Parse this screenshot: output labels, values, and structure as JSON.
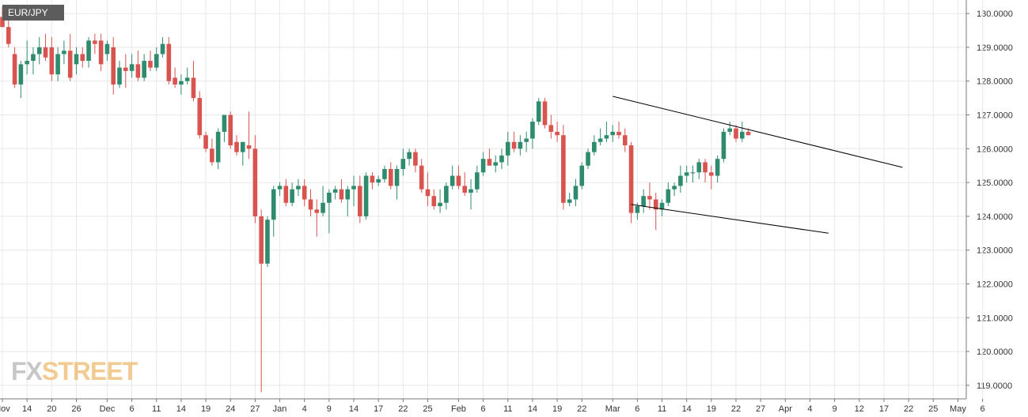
{
  "symbol_label": "EUR/JPY",
  "watermark": {
    "part1": "FX",
    "part2": "STREET"
  },
  "colors": {
    "up": "#2e8b6e",
    "down": "#d9534f",
    "grid": "#e8e8e8",
    "axis": "#777777",
    "trend": "#000000"
  },
  "chart_data": {
    "type": "candlestick",
    "y_axis": {
      "range": [
        118.6,
        130.4
      ],
      "ticks": [
        "119.0000",
        "120.0000",
        "121.0000",
        "122.0000",
        "123.0000",
        "124.0000",
        "125.0000",
        "126.0000",
        "127.0000",
        "128.0000",
        "129.0000",
        "130.0000"
      ]
    },
    "x_axis": {
      "ticks": [
        {
          "i": 0,
          "label": "Nov"
        },
        {
          "i": 4,
          "label": "14"
        },
        {
          "i": 8,
          "label": "20"
        },
        {
          "i": 12,
          "label": "26"
        },
        {
          "i": 17,
          "label": "Dec"
        },
        {
          "i": 21,
          "label": "6"
        },
        {
          "i": 25,
          "label": "11"
        },
        {
          "i": 29,
          "label": "14"
        },
        {
          "i": 33,
          "label": "19"
        },
        {
          "i": 37,
          "label": "24"
        },
        {
          "i": 41,
          "label": "27"
        },
        {
          "i": 45,
          "label": "Jan"
        },
        {
          "i": 49,
          "label": "4"
        },
        {
          "i": 53,
          "label": "9"
        },
        {
          "i": 57,
          "label": "14"
        },
        {
          "i": 61,
          "label": "17"
        },
        {
          "i": 65,
          "label": "22"
        },
        {
          "i": 69,
          "label": "25"
        },
        {
          "i": 74,
          "label": "Feb"
        },
        {
          "i": 78,
          "label": "6"
        },
        {
          "i": 82,
          "label": "11"
        },
        {
          "i": 86,
          "label": "14"
        },
        {
          "i": 90,
          "label": "19"
        },
        {
          "i": 94,
          "label": "22"
        },
        {
          "i": 99,
          "label": "Mar"
        },
        {
          "i": 103,
          "label": "6"
        },
        {
          "i": 107,
          "label": "11"
        },
        {
          "i": 111,
          "label": "14"
        },
        {
          "i": 115,
          "label": "19"
        },
        {
          "i": 119,
          "label": "22"
        },
        {
          "i": 123,
          "label": "27"
        },
        {
          "i": 127,
          "label": "Apr"
        },
        {
          "i": 131,
          "label": "4"
        },
        {
          "i": 135,
          "label": "9"
        },
        {
          "i": 139,
          "label": "12"
        },
        {
          "i": 143,
          "label": "17"
        },
        {
          "i": 147,
          "label": "22"
        },
        {
          "i": 151,
          "label": "25"
        },
        {
          "i": 155,
          "label": "May"
        },
        {
          "i": 159,
          "label": "6"
        }
      ]
    },
    "candles": [
      {
        "o": 129.9,
        "h": 130.2,
        "l": 129.6,
        "c": 129.6
      },
      {
        "o": 129.6,
        "h": 129.8,
        "l": 129.0,
        "c": 129.1
      },
      {
        "o": 128.8,
        "h": 129.0,
        "l": 127.8,
        "c": 127.9
      },
      {
        "o": 127.9,
        "h": 128.6,
        "l": 127.5,
        "c": 128.5
      },
      {
        "o": 128.5,
        "h": 129.2,
        "l": 128.2,
        "c": 128.6
      },
      {
        "o": 128.6,
        "h": 129.0,
        "l": 128.2,
        "c": 128.8
      },
      {
        "o": 128.8,
        "h": 129.3,
        "l": 128.5,
        "c": 129.0
      },
      {
        "o": 129.0,
        "h": 129.4,
        "l": 128.6,
        "c": 128.7
      },
      {
        "o": 129.0,
        "h": 129.3,
        "l": 128.0,
        "c": 128.2
      },
      {
        "o": 128.2,
        "h": 129.0,
        "l": 128.0,
        "c": 128.8
      },
      {
        "o": 128.8,
        "h": 129.2,
        "l": 128.5,
        "c": 128.9
      },
      {
        "o": 128.9,
        "h": 129.4,
        "l": 128.0,
        "c": 128.1
      },
      {
        "o": 128.5,
        "h": 129.0,
        "l": 128.2,
        "c": 128.8
      },
      {
        "o": 128.8,
        "h": 129.0,
        "l": 128.4,
        "c": 128.6
      },
      {
        "o": 128.6,
        "h": 129.3,
        "l": 128.4,
        "c": 129.2
      },
      {
        "o": 129.2,
        "h": 129.4,
        "l": 128.8,
        "c": 129.1
      },
      {
        "o": 129.2,
        "h": 129.4,
        "l": 128.3,
        "c": 128.5
      },
      {
        "o": 128.8,
        "h": 129.2,
        "l": 128.6,
        "c": 129.1
      },
      {
        "o": 129.0,
        "h": 129.3,
        "l": 127.6,
        "c": 127.9
      },
      {
        "o": 127.9,
        "h": 128.6,
        "l": 127.8,
        "c": 128.4
      },
      {
        "o": 128.4,
        "h": 128.8,
        "l": 127.8,
        "c": 128.3
      },
      {
        "o": 128.3,
        "h": 128.8,
        "l": 128.1,
        "c": 128.5
      },
      {
        "o": 128.5,
        "h": 128.9,
        "l": 128.0,
        "c": 128.1
      },
      {
        "o": 128.1,
        "h": 128.8,
        "l": 128.0,
        "c": 128.6
      },
      {
        "o": 128.6,
        "h": 128.9,
        "l": 128.3,
        "c": 128.4
      },
      {
        "o": 128.4,
        "h": 129.0,
        "l": 128.3,
        "c": 128.8
      },
      {
        "o": 128.8,
        "h": 129.3,
        "l": 128.7,
        "c": 129.1
      },
      {
        "o": 129.1,
        "h": 129.3,
        "l": 127.9,
        "c": 128.0
      },
      {
        "o": 128.1,
        "h": 128.4,
        "l": 127.8,
        "c": 127.9
      },
      {
        "o": 127.9,
        "h": 128.2,
        "l": 127.6,
        "c": 128.0
      },
      {
        "o": 128.0,
        "h": 128.4,
        "l": 127.9,
        "c": 128.1
      },
      {
        "o": 128.1,
        "h": 128.6,
        "l": 127.4,
        "c": 127.5
      },
      {
        "o": 127.5,
        "h": 127.7,
        "l": 126.3,
        "c": 126.4
      },
      {
        "o": 126.4,
        "h": 126.5,
        "l": 125.9,
        "c": 126.0
      },
      {
        "o": 126.0,
        "h": 126.3,
        "l": 125.5,
        "c": 125.6
      },
      {
        "o": 125.6,
        "h": 126.6,
        "l": 125.4,
        "c": 126.5
      },
      {
        "o": 126.5,
        "h": 127.0,
        "l": 126.2,
        "c": 127.0
      },
      {
        "o": 127.0,
        "h": 127.1,
        "l": 126.0,
        "c": 126.1
      },
      {
        "o": 126.2,
        "h": 126.4,
        "l": 125.8,
        "c": 125.9
      },
      {
        "o": 125.9,
        "h": 126.2,
        "l": 125.5,
        "c": 126.2
      },
      {
        "o": 126.1,
        "h": 127.1,
        "l": 125.7,
        "c": 126.0
      },
      {
        "o": 126.0,
        "h": 126.4,
        "l": 123.8,
        "c": 124.0
      },
      {
        "o": 124.0,
        "h": 124.2,
        "l": 118.8,
        "c": 122.6
      },
      {
        "o": 122.6,
        "h": 124.0,
        "l": 122.5,
        "c": 123.9
      },
      {
        "o": 123.9,
        "h": 124.9,
        "l": 123.4,
        "c": 124.8
      },
      {
        "o": 124.8,
        "h": 125.0,
        "l": 124.6,
        "c": 124.9
      },
      {
        "o": 124.9,
        "h": 125.1,
        "l": 124.3,
        "c": 124.4
      },
      {
        "o": 124.4,
        "h": 125.0,
        "l": 124.3,
        "c": 124.8
      },
      {
        "o": 124.8,
        "h": 125.1,
        "l": 124.6,
        "c": 124.9
      },
      {
        "o": 124.9,
        "h": 125.1,
        "l": 124.3,
        "c": 124.5
      },
      {
        "o": 124.5,
        "h": 124.8,
        "l": 124.0,
        "c": 124.2
      },
      {
        "o": 124.2,
        "h": 124.5,
        "l": 123.4,
        "c": 124.1
      },
      {
        "o": 124.1,
        "h": 124.9,
        "l": 124.0,
        "c": 124.4
      },
      {
        "o": 124.4,
        "h": 124.8,
        "l": 123.5,
        "c": 124.7
      },
      {
        "o": 124.7,
        "h": 124.9,
        "l": 124.5,
        "c": 124.8
      },
      {
        "o": 124.8,
        "h": 125.1,
        "l": 124.4,
        "c": 124.5
      },
      {
        "o": 124.5,
        "h": 124.9,
        "l": 124.0,
        "c": 124.8
      },
      {
        "o": 124.8,
        "h": 125.2,
        "l": 124.3,
        "c": 124.9
      },
      {
        "o": 124.9,
        "h": 125.2,
        "l": 123.8,
        "c": 124.0
      },
      {
        "o": 124.0,
        "h": 125.3,
        "l": 123.9,
        "c": 125.2
      },
      {
        "o": 125.2,
        "h": 125.3,
        "l": 124.8,
        "c": 125.0
      },
      {
        "o": 125.0,
        "h": 125.2,
        "l": 124.9,
        "c": 125.1
      },
      {
        "o": 125.1,
        "h": 125.5,
        "l": 125.0,
        "c": 125.4
      },
      {
        "o": 125.4,
        "h": 125.6,
        "l": 124.8,
        "c": 124.9
      },
      {
        "o": 124.9,
        "h": 125.5,
        "l": 124.5,
        "c": 125.4
      },
      {
        "o": 125.4,
        "h": 126.0,
        "l": 125.2,
        "c": 125.7
      },
      {
        "o": 125.7,
        "h": 126.0,
        "l": 125.5,
        "c": 125.9
      },
      {
        "o": 125.9,
        "h": 126.0,
        "l": 125.3,
        "c": 125.5
      },
      {
        "o": 125.5,
        "h": 125.7,
        "l": 124.7,
        "c": 124.8
      },
      {
        "o": 124.8,
        "h": 125.3,
        "l": 124.3,
        "c": 124.6
      },
      {
        "o": 124.6,
        "h": 124.8,
        "l": 124.2,
        "c": 124.3
      },
      {
        "o": 124.3,
        "h": 124.8,
        "l": 124.1,
        "c": 124.4
      },
      {
        "o": 124.4,
        "h": 125.0,
        "l": 124.2,
        "c": 124.9
      },
      {
        "o": 124.9,
        "h": 125.5,
        "l": 124.8,
        "c": 125.2
      },
      {
        "o": 125.2,
        "h": 125.5,
        "l": 124.8,
        "c": 124.9
      },
      {
        "o": 124.9,
        "h": 125.3,
        "l": 124.6,
        "c": 124.7
      },
      {
        "o": 124.7,
        "h": 125.1,
        "l": 124.2,
        "c": 124.8
      },
      {
        "o": 124.8,
        "h": 125.5,
        "l": 124.7,
        "c": 125.3
      },
      {
        "o": 125.3,
        "h": 125.9,
        "l": 125.2,
        "c": 125.7
      },
      {
        "o": 125.7,
        "h": 126.0,
        "l": 125.5,
        "c": 125.5
      },
      {
        "o": 125.5,
        "h": 125.8,
        "l": 125.3,
        "c": 125.6
      },
      {
        "o": 125.6,
        "h": 126.0,
        "l": 125.4,
        "c": 125.8
      },
      {
        "o": 125.8,
        "h": 126.5,
        "l": 125.5,
        "c": 126.2
      },
      {
        "o": 126.2,
        "h": 126.5,
        "l": 125.9,
        "c": 126.0
      },
      {
        "o": 126.0,
        "h": 126.4,
        "l": 125.8,
        "c": 126.2
      },
      {
        "o": 126.2,
        "h": 126.5,
        "l": 125.9,
        "c": 126.3
      },
      {
        "o": 126.3,
        "h": 126.9,
        "l": 126.0,
        "c": 126.8
      },
      {
        "o": 126.8,
        "h": 127.5,
        "l": 126.7,
        "c": 127.4
      },
      {
        "o": 127.4,
        "h": 127.5,
        "l": 126.6,
        "c": 126.7
      },
      {
        "o": 126.7,
        "h": 127.0,
        "l": 126.3,
        "c": 126.5
      },
      {
        "o": 126.5,
        "h": 126.8,
        "l": 126.2,
        "c": 126.4
      },
      {
        "o": 126.4,
        "h": 126.7,
        "l": 124.2,
        "c": 124.4
      },
      {
        "o": 124.4,
        "h": 124.7,
        "l": 124.3,
        "c": 124.5
      },
      {
        "o": 124.5,
        "h": 125.1,
        "l": 124.3,
        "c": 124.9
      },
      {
        "o": 124.9,
        "h": 125.6,
        "l": 124.8,
        "c": 125.5
      },
      {
        "o": 125.5,
        "h": 126.0,
        "l": 125.4,
        "c": 125.9
      },
      {
        "o": 125.9,
        "h": 126.4,
        "l": 125.8,
        "c": 126.2
      },
      {
        "o": 126.2,
        "h": 126.6,
        "l": 126.1,
        "c": 126.3
      },
      {
        "o": 126.3,
        "h": 126.8,
        "l": 126.2,
        "c": 126.4
      },
      {
        "o": 126.4,
        "h": 126.7,
        "l": 126.2,
        "c": 126.5
      },
      {
        "o": 126.5,
        "h": 126.8,
        "l": 126.3,
        "c": 126.4
      },
      {
        "o": 126.4,
        "h": 126.6,
        "l": 125.9,
        "c": 126.1
      },
      {
        "o": 126.1,
        "h": 126.2,
        "l": 123.8,
        "c": 124.1
      },
      {
        "o": 124.1,
        "h": 124.4,
        "l": 123.9,
        "c": 124.3
      },
      {
        "o": 124.3,
        "h": 124.8,
        "l": 124.1,
        "c": 124.6
      },
      {
        "o": 124.6,
        "h": 125.0,
        "l": 124.2,
        "c": 124.5
      },
      {
        "o": 124.5,
        "h": 124.7,
        "l": 123.6,
        "c": 124.2
      },
      {
        "o": 124.2,
        "h": 124.5,
        "l": 124.0,
        "c": 124.4
      },
      {
        "o": 124.4,
        "h": 125.0,
        "l": 124.3,
        "c": 124.8
      },
      {
        "o": 124.8,
        "h": 125.0,
        "l": 124.6,
        "c": 124.9
      },
      {
        "o": 124.9,
        "h": 125.5,
        "l": 124.7,
        "c": 125.2
      },
      {
        "o": 125.2,
        "h": 125.5,
        "l": 125.0,
        "c": 125.3
      },
      {
        "o": 125.3,
        "h": 125.5,
        "l": 125.0,
        "c": 125.3
      },
      {
        "o": 125.3,
        "h": 125.7,
        "l": 125.1,
        "c": 125.6
      },
      {
        "o": 125.6,
        "h": 125.7,
        "l": 125.0,
        "c": 125.3
      },
      {
        "o": 125.3,
        "h": 125.5,
        "l": 124.8,
        "c": 125.2
      },
      {
        "o": 125.2,
        "h": 125.8,
        "l": 125.0,
        "c": 125.7
      },
      {
        "o": 125.7,
        "h": 126.6,
        "l": 125.6,
        "c": 126.5
      },
      {
        "o": 126.5,
        "h": 126.8,
        "l": 126.4,
        "c": 126.6
      },
      {
        "o": 126.6,
        "h": 126.7,
        "l": 126.2,
        "c": 126.3
      },
      {
        "o": 126.3,
        "h": 126.8,
        "l": 126.2,
        "c": 126.5
      },
      {
        "o": 126.5,
        "h": 126.6,
        "l": 126.4,
        "c": 126.4
      }
    ],
    "trendlines": [
      {
        "name": "upper",
        "from": {
          "i": 99,
          "y": 127.55
        },
        "to": {
          "i": 146,
          "y": 125.45
        }
      },
      {
        "name": "lower",
        "from": {
          "i": 102,
          "y": 124.35
        },
        "to": {
          "i": 134,
          "y": 123.5
        }
      }
    ]
  }
}
